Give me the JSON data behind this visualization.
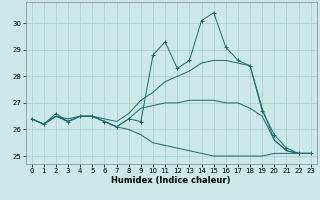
{
  "background_color": "#cce8e8",
  "grid_color": "#a8cccc",
  "line_color": "#1a6b6b",
  "xlabel": "Humidex (Indice chaleur)",
  "xlim": [
    -0.5,
    23.5
  ],
  "ylim": [
    24.7,
    30.8
  ],
  "yticks": [
    25,
    26,
    27,
    28,
    29,
    30
  ],
  "xticks": [
    0,
    1,
    2,
    3,
    4,
    5,
    6,
    7,
    8,
    9,
    10,
    11,
    12,
    13,
    14,
    15,
    16,
    17,
    18,
    19,
    20,
    21,
    22,
    23
  ],
  "line_jagged_x": [
    0,
    1,
    2,
    3,
    4,
    5,
    6,
    7,
    8,
    9,
    10,
    11,
    12,
    13,
    14,
    15,
    16,
    17,
    18,
    19,
    20,
    21,
    22,
    23
  ],
  "line_jagged_y": [
    26.4,
    26.2,
    26.6,
    26.3,
    26.5,
    26.5,
    26.3,
    26.1,
    26.4,
    26.3,
    28.8,
    29.3,
    28.3,
    28.6,
    30.1,
    30.4,
    29.1,
    28.6,
    28.4,
    26.7,
    25.8,
    25.3,
    25.1,
    25.1
  ],
  "line_upper_x": [
    0,
    1,
    2,
    3,
    4,
    5,
    6,
    7,
    8,
    9,
    10,
    11,
    12,
    13,
    14,
    15,
    16,
    17,
    18,
    19,
    20,
    21,
    22,
    23
  ],
  "line_upper_y": [
    26.4,
    26.2,
    26.5,
    26.4,
    26.5,
    26.5,
    26.4,
    26.3,
    26.6,
    27.1,
    27.4,
    27.8,
    28.0,
    28.2,
    28.5,
    28.6,
    28.6,
    28.5,
    28.4,
    26.8,
    25.6,
    25.2,
    25.1,
    25.1
  ],
  "line_mid_x": [
    0,
    1,
    2,
    3,
    4,
    5,
    6,
    7,
    8,
    9,
    10,
    11,
    12,
    13,
    14,
    15,
    16,
    17,
    18,
    19,
    20,
    21,
    22,
    23
  ],
  "line_mid_y": [
    26.4,
    26.2,
    26.5,
    26.3,
    26.5,
    26.5,
    26.3,
    26.1,
    26.4,
    26.8,
    26.9,
    27.0,
    27.0,
    27.1,
    27.1,
    27.1,
    27.0,
    27.0,
    26.8,
    26.5,
    25.6,
    25.2,
    25.1,
    25.1
  ],
  "line_lower_x": [
    0,
    1,
    2,
    3,
    4,
    5,
    6,
    7,
    8,
    9,
    10,
    11,
    12,
    13,
    14,
    15,
    16,
    17,
    18,
    19,
    20,
    21,
    22,
    23
  ],
  "line_lower_y": [
    26.4,
    26.2,
    26.5,
    26.3,
    26.5,
    26.5,
    26.3,
    26.1,
    26.0,
    25.8,
    25.5,
    25.4,
    25.3,
    25.2,
    25.1,
    25.0,
    25.0,
    25.0,
    25.0,
    25.0,
    25.1,
    25.1,
    25.1,
    25.1
  ]
}
